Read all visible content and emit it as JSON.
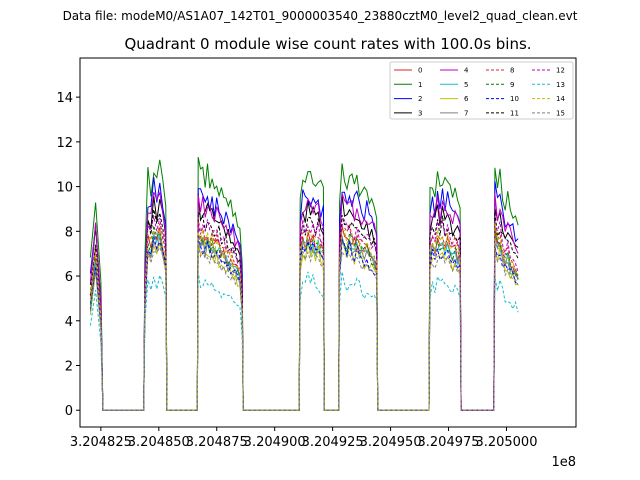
{
  "suptitle": "Data file: modeM0/AS1A07_142T01_9000003540_23880cztM0_level2_quad_clean.evt",
  "chart_data": {
    "type": "line",
    "title": "Quadrant 0 module wise count rates with 100.0s bins.",
    "xlabel": "",
    "ylabel": "",
    "x_offset_label": "1e8",
    "xlim": [
      3.204816,
      3.20503
    ],
    "ylim": [
      -0.75,
      15.75
    ],
    "xticks": [
      3.204825,
      3.20485,
      3.204875,
      3.2049,
      3.204925,
      3.20495,
      3.204975,
      3.205
    ],
    "xtick_labels": [
      "3.204825",
      "3.204850",
      "3.204875",
      "3.204900",
      "3.204925",
      "3.204950",
      "3.204975",
      "3.205000"
    ],
    "yticks": [
      0,
      2,
      4,
      6,
      8,
      10,
      12,
      14
    ],
    "ytick_labels": [
      "0",
      "2",
      "4",
      "6",
      "8",
      "10",
      "12",
      "14"
    ],
    "grid": false,
    "legend_position": "top-right",
    "legend_columns": 4,
    "active_segments": [
      [
        3.2048205,
        3.204825,
        [
          0.6,
          0.86,
          0.5
        ]
      ],
      [
        3.204844,
        3.204853,
        [
          0.62,
          0.95,
          0.9,
          1.0,
          0.95,
          0.98,
          0.92,
          0.85
        ]
      ],
      [
        3.204867,
        3.204886,
        [
          1.0,
          0.95,
          0.97,
          0.93,
          0.96,
          0.92,
          0.94,
          0.9,
          0.92,
          0.9,
          0.88,
          0.87,
          0.86,
          0.84,
          0.83,
          0.82,
          0.8,
          0.78,
          0.76,
          0.58
        ]
      ],
      [
        3.204911,
        3.204921,
        [
          0.87,
          0.95,
          0.93,
          0.98,
          0.94,
          0.96,
          0.92,
          0.95,
          0.9,
          0.88
        ]
      ],
      [
        3.204928,
        3.204944,
        [
          0.82,
          1.0,
          0.96,
          0.93,
          0.97,
          0.94,
          0.92,
          0.95,
          0.91,
          0.9,
          0.88,
          0.9,
          0.87,
          0.86,
          0.84,
          0.8
        ]
      ],
      [
        3.204967,
        3.20498,
        [
          0.87,
          0.93,
          0.9,
          0.96,
          0.92,
          0.95,
          0.91,
          0.94,
          0.9,
          0.88,
          0.9,
          0.87,
          0.85
        ]
      ],
      [
        3.204995,
        3.205005,
        [
          1.0,
          0.92,
          0.95,
          0.88,
          0.84,
          0.86,
          0.82,
          0.8,
          0.78,
          0.75
        ]
      ]
    ],
    "gap_value": 0,
    "series": [
      {
        "name": "0",
        "color": "#d62728",
        "style": "solid",
        "level": 8.0
      },
      {
        "name": "1",
        "color": "#008000",
        "style": "solid",
        "level": 11.0
      },
      {
        "name": "2",
        "color": "#0000ff",
        "style": "solid",
        "level": 10.0
      },
      {
        "name": "3",
        "color": "#000000",
        "style": "solid",
        "level": 9.3
      },
      {
        "name": "4",
        "color": "#bf00bf",
        "style": "solid",
        "level": 9.6
      },
      {
        "name": "5",
        "color": "#17becf",
        "style": "solid",
        "level": 7.8
      },
      {
        "name": "6",
        "color": "#bfbf00",
        "style": "solid",
        "level": 7.4
      },
      {
        "name": "7",
        "color": "#808080",
        "style": "solid",
        "level": 7.7
      },
      {
        "name": "8",
        "color": "#d62728",
        "style": "dashed",
        "level": 8.3
      },
      {
        "name": "9",
        "color": "#008000",
        "style": "dashed",
        "level": 7.9
      },
      {
        "name": "10",
        "color": "#0000ff",
        "style": "dashed",
        "level": 7.5
      },
      {
        "name": "11",
        "color": "#000000",
        "style": "dashed",
        "level": 8.8
      },
      {
        "name": "12",
        "color": "#bf00bf",
        "style": "dashed",
        "level": 8.6
      },
      {
        "name": "13",
        "color": "#17becf",
        "style": "dashed",
        "level": 6.0
      },
      {
        "name": "14",
        "color": "#bfbf00",
        "style": "dashed",
        "level": 8.1
      },
      {
        "name": "15",
        "color": "#808080",
        "style": "dashed",
        "level": 7.3
      }
    ]
  }
}
